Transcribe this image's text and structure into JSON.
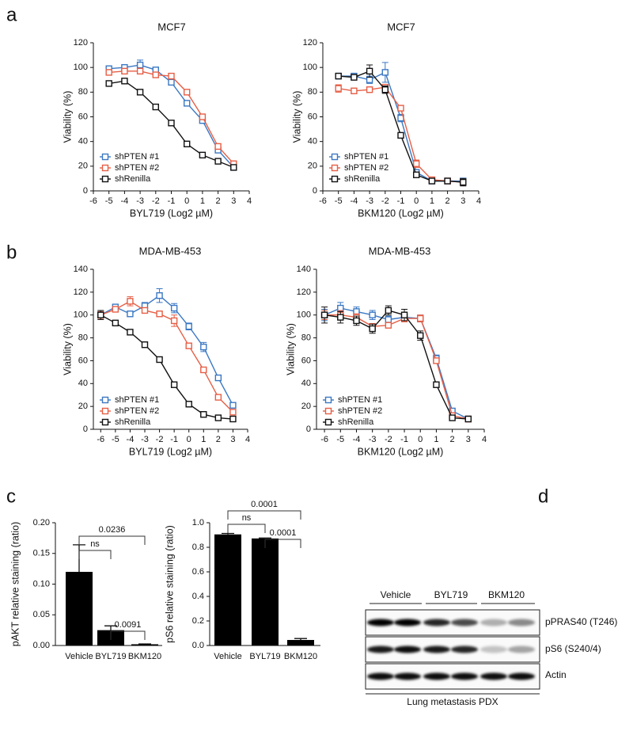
{
  "panels": [
    "a",
    "b",
    "c",
    "d"
  ],
  "chart_data": [
    {
      "type": "line",
      "title": "MCF7",
      "x_label": "BYL719 (Log2 µM)",
      "y_label": "Viability (%)",
      "x": [
        -5,
        -4,
        -3,
        -2,
        -1,
        0,
        1,
        2,
        3
      ],
      "xlim": [
        -6,
        4
      ],
      "xticks": [
        -6,
        -5,
        -4,
        -3,
        -2,
        -1,
        0,
        1,
        2,
        3,
        4
      ],
      "ylim": [
        0,
        120
      ],
      "yticks": [
        0,
        20,
        40,
        60,
        80,
        100,
        120
      ],
      "legend": "lower left",
      "series": [
        {
          "name": "shPTEN #1",
          "color": "#3b78c3",
          "values": [
            99,
            100,
            102,
            98,
            88,
            71,
            57,
            33,
            19
          ],
          "errors": [
            2,
            2,
            4,
            2,
            2,
            2,
            2,
            2,
            2
          ]
        },
        {
          "name": "shPTEN #2",
          "color": "#e65f46",
          "values": [
            96,
            97,
            97,
            94,
            93,
            80,
            60,
            36,
            22
          ],
          "errors": [
            2,
            2,
            2,
            2,
            2,
            2,
            2,
            2,
            2
          ]
        },
        {
          "name": "shRenilla",
          "color": "#111111",
          "values": [
            87,
            89,
            80,
            68,
            55,
            38,
            29,
            24,
            19
          ],
          "errors": [
            1,
            1,
            1,
            1,
            1,
            1,
            1,
            1,
            1
          ]
        }
      ]
    },
    {
      "type": "line",
      "title": "MCF7",
      "x_label": "BKM120 (Log2 µM)",
      "y_label": "Viability (%)",
      "x": [
        -5,
        -4,
        -3,
        -2,
        -1,
        0,
        1,
        2,
        3
      ],
      "xlim": [
        -6,
        4
      ],
      "xticks": [
        -6,
        -5,
        -4,
        -3,
        -2,
        -1,
        0,
        1,
        2,
        3,
        4
      ],
      "ylim": [
        0,
        120
      ],
      "yticks": [
        0,
        20,
        40,
        60,
        80,
        100,
        120
      ],
      "legend": "lower left",
      "series": [
        {
          "name": "shPTEN #1",
          "color": "#3b78c3",
          "values": [
            93,
            93,
            90,
            96,
            59,
            15,
            8,
            8,
            8
          ],
          "errors": [
            2,
            2,
            3,
            8,
            3,
            2,
            1,
            1,
            1
          ]
        },
        {
          "name": "shPTEN #2",
          "color": "#e65f46",
          "values": [
            83,
            81,
            82,
            84,
            67,
            22,
            9,
            8,
            7
          ],
          "errors": [
            3,
            2,
            2,
            2,
            2,
            3,
            1,
            1,
            1
          ]
        },
        {
          "name": "shRenilla",
          "color": "#111111",
          "values": [
            93,
            92,
            97,
            82,
            45,
            13,
            8,
            8,
            7
          ],
          "errors": [
            2,
            2,
            5,
            3,
            2,
            2,
            1,
            1,
            3
          ]
        }
      ]
    },
    {
      "type": "line",
      "title": "MDA-MB-453",
      "x_label": "BYL719 (Log2 µM)",
      "y_label": "Viability (%)",
      "x": [
        -6,
        -5,
        -4,
        -3,
        -2,
        -1,
        0,
        1,
        2,
        3
      ],
      "xlim": [
        -6.5,
        4
      ],
      "xticks": [
        -6,
        -5,
        -4,
        -3,
        -2,
        -1,
        0,
        1,
        2,
        3,
        4
      ],
      "ylim": [
        0,
        140
      ],
      "yticks": [
        0,
        20,
        40,
        60,
        80,
        100,
        120,
        140
      ],
      "legend": "lower left",
      "series": [
        {
          "name": "shPTEN #1",
          "color": "#3b78c3",
          "values": [
            100,
            107,
            101,
            108,
            117,
            106,
            90,
            72,
            45,
            21
          ],
          "errors": [
            3,
            2,
            2,
            3,
            6,
            4,
            3,
            4,
            2,
            2
          ]
        },
        {
          "name": "shPTEN #2",
          "color": "#e65f46",
          "values": [
            100,
            105,
            112,
            104,
            101,
            95,
            73,
            52,
            28,
            15
          ],
          "errors": [
            3,
            2,
            4,
            2,
            2,
            5,
            2,
            2,
            2,
            2
          ]
        },
        {
          "name": "shRenilla",
          "color": "#111111",
          "values": [
            100,
            93,
            85,
            74,
            61,
            39,
            22,
            13,
            10,
            9
          ],
          "errors": [
            4,
            2,
            1,
            1,
            1,
            1,
            1,
            1,
            1,
            1
          ]
        }
      ]
    },
    {
      "type": "line",
      "title": "MDA-MB-453",
      "x_label": "BKM120 (Log2 µM)",
      "y_label": "Viability (%)",
      "x": [
        -6,
        -5,
        -4,
        -3,
        -2,
        -1,
        0,
        1,
        2,
        3
      ],
      "xlim": [
        -6.5,
        4
      ],
      "xticks": [
        -6,
        -5,
        -4,
        -3,
        -2,
        -1,
        0,
        1,
        2,
        3,
        4
      ],
      "ylim": [
        0,
        140
      ],
      "yticks": [
        0,
        20,
        40,
        60,
        80,
        100,
        120,
        140
      ],
      "legend": "lower left",
      "series": [
        {
          "name": "shPTEN #1",
          "color": "#3b78c3",
          "values": [
            100,
            106,
            103,
            100,
            96,
            98,
            97,
            62,
            16,
            9
          ],
          "errors": [
            5,
            5,
            4,
            4,
            3,
            3,
            3,
            3,
            2,
            1
          ]
        },
        {
          "name": "shPTEN #2",
          "color": "#e65f46",
          "values": [
            100,
            100,
            98,
            90,
            91,
            97,
            97,
            60,
            12,
            9
          ],
          "errors": [
            4,
            4,
            3,
            2,
            2,
            3,
            3,
            2,
            2,
            1
          ]
        },
        {
          "name": "shRenilla",
          "color": "#111111",
          "values": [
            100,
            98,
            95,
            88,
            104,
            100,
            82,
            39,
            10,
            9
          ],
          "errors": [
            7,
            5,
            4,
            4,
            4,
            5,
            4,
            1,
            1,
            1
          ]
        }
      ]
    },
    {
      "type": "bar",
      "y_label": "pAKT relative staining (ratio)",
      "categories": [
        "Vehicle",
        "BYL719",
        "BKM120"
      ],
      "values": [
        0.12,
        0.025,
        0.002
      ],
      "errors": [
        0.044,
        0.007,
        0.0005
      ],
      "color": "#000000",
      "ylim": [
        0,
        0.2
      ],
      "yticks": [
        {
          "value": 0,
          "label": "0.00"
        },
        {
          "value": 0.05,
          "label": "0.05"
        },
        {
          "value": 0.1,
          "label": "0.10"
        },
        {
          "value": 0.15,
          "label": "0.15"
        },
        {
          "value": 0.2,
          "label": "0.20"
        }
      ],
      "comparisons": [
        {
          "from": "Vehicle",
          "to": "BYL719",
          "label": "ns"
        },
        {
          "from": "Vehicle",
          "to": "BKM120",
          "label": "0.0236"
        },
        {
          "from": "BYL719",
          "to": "BKM120",
          "label": "0.0091"
        }
      ]
    },
    {
      "type": "bar",
      "y_label": "pS6 relative staining (ratio)",
      "categories": [
        "Vehicle",
        "BYL719",
        "BKM120"
      ],
      "values": [
        0.905,
        0.872,
        0.045
      ],
      "errors": [
        0.008,
        0.004,
        0.012
      ],
      "color": "#000000",
      "ylim": [
        0,
        1
      ],
      "yticks": [
        {
          "value": 0,
          "label": "0.0"
        },
        {
          "value": 0.2,
          "label": "0.2"
        },
        {
          "value": 0.4,
          "label": "0.4"
        },
        {
          "value": 0.6,
          "label": "0.6"
        },
        {
          "value": 0.8,
          "label": "0.8"
        },
        {
          "value": 1,
          "label": "1.0"
        }
      ],
      "comparisons": [
        {
          "from": "Vehicle",
          "to": "BYL719",
          "label": "ns"
        },
        {
          "from": "BYL719",
          "to": "BKM120",
          "label": "0.0001"
        },
        {
          "from": "Vehicle",
          "to": "BKM120",
          "label": "0.0001"
        }
      ]
    }
  ],
  "blot": {
    "groups": [
      "Vehicle",
      "BYL719",
      "BKM120"
    ],
    "rows": [
      "pPRAS40 (T246)",
      "pS6 (S240/4)",
      "Actin"
    ],
    "caption": "Lung metastasis PDX"
  }
}
